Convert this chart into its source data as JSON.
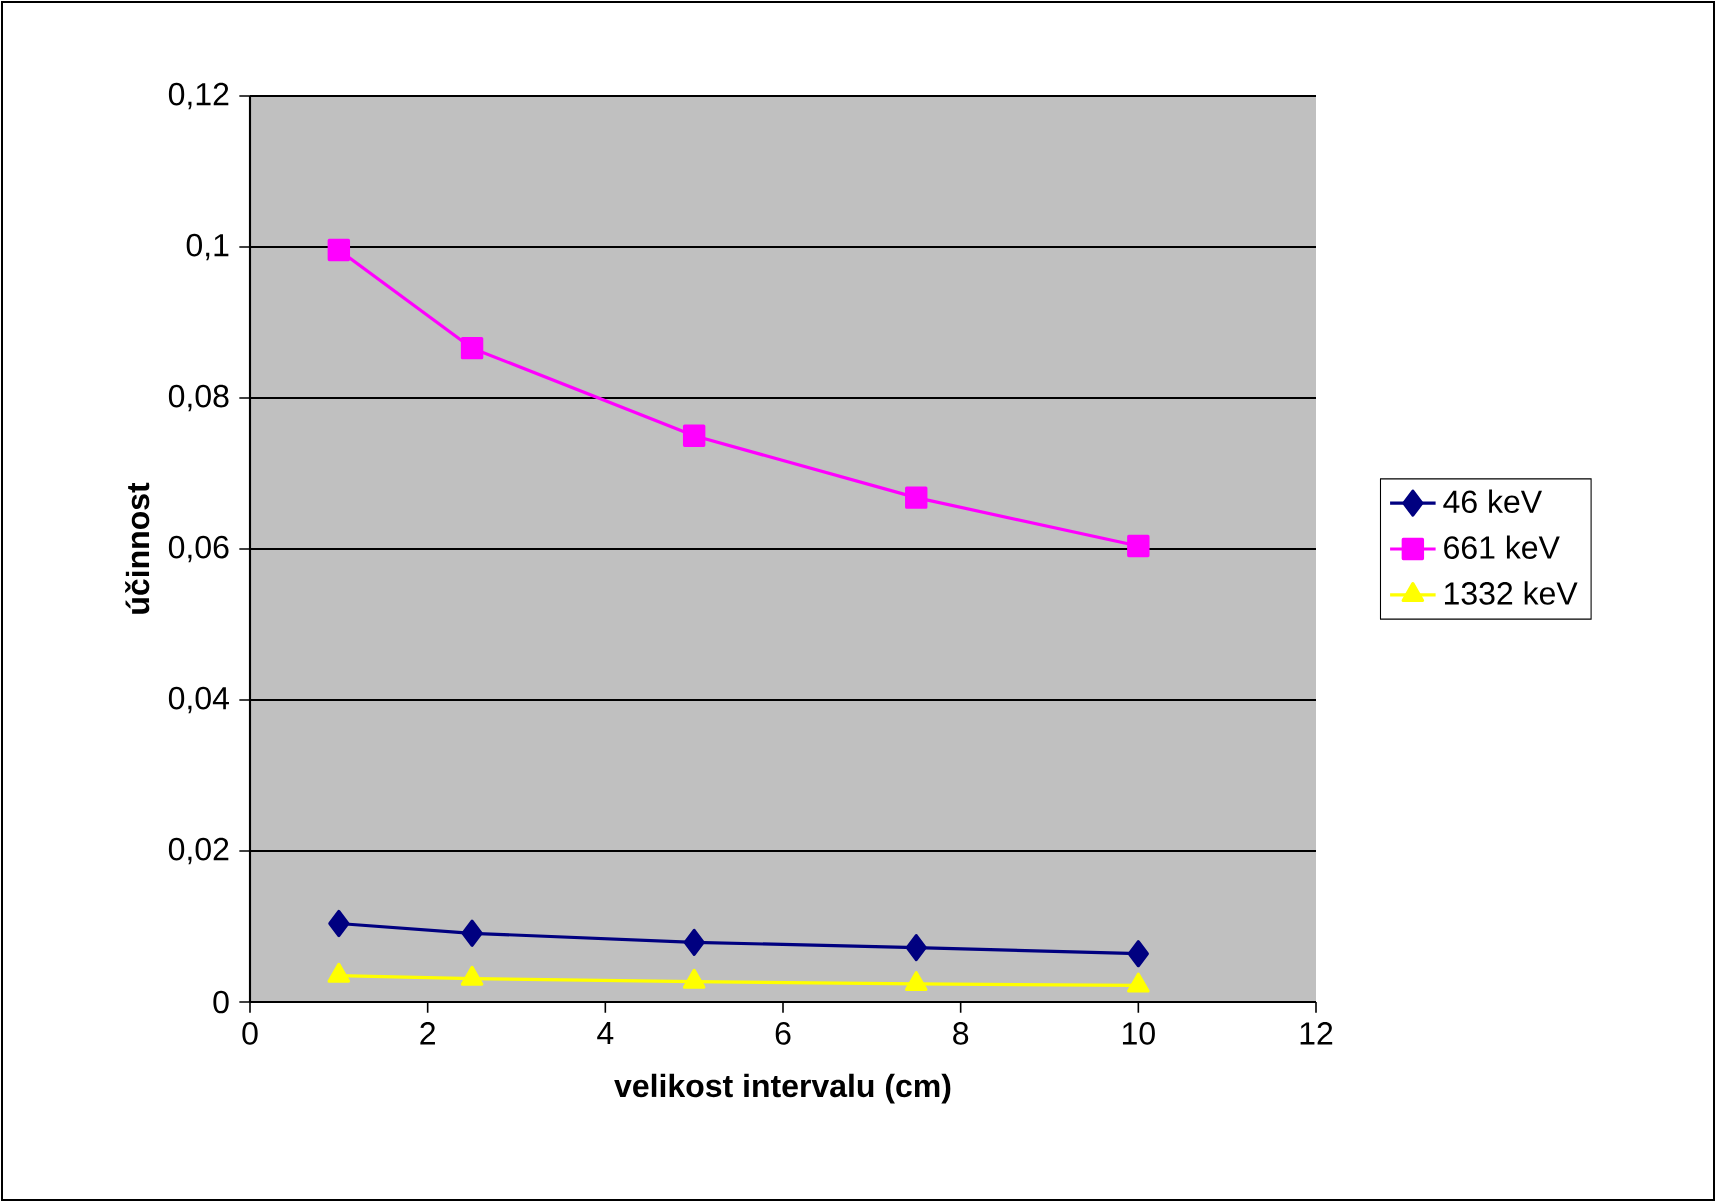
{
  "chart_data": {
    "type": "line",
    "xlabel": "velikost intervalu (cm)",
    "ylabel": "účinnost",
    "x": [
      1,
      2.5,
      5,
      7.5,
      10
    ],
    "series": [
      {
        "name": "46 keV",
        "color": "#000080",
        "marker": "diamond",
        "values": [
          0.0104,
          0.0091,
          0.0079,
          0.0072,
          0.0064
        ]
      },
      {
        "name": "661 keV",
        "color": "#ff00ff",
        "marker": "square",
        "values": [
          0.0996,
          0.0866,
          0.075,
          0.0668,
          0.0604
        ]
      },
      {
        "name": "1332 keV",
        "color": "#ffff00",
        "marker": "triangle",
        "values": [
          0.0035,
          0.0031,
          0.0027,
          0.0024,
          0.0022
        ]
      }
    ],
    "xlim": [
      0,
      12
    ],
    "xticks": [
      0,
      2,
      4,
      6,
      8,
      10,
      12
    ],
    "ylim": [
      0,
      0.12
    ],
    "yticks": [
      0,
      {
        "value": 0.02,
        "label": "0,02"
      },
      {
        "value": 0.04,
        "label": "0,04"
      },
      {
        "value": 0.06,
        "label": "0,06"
      },
      {
        "value": 0.08,
        "label": "0,08"
      },
      {
        "value": 0.1,
        "label": "0,1"
      },
      {
        "value": 0.12,
        "label": "0,12"
      }
    ],
    "grid": "y",
    "legend": "right",
    "line_style": "solid"
  }
}
